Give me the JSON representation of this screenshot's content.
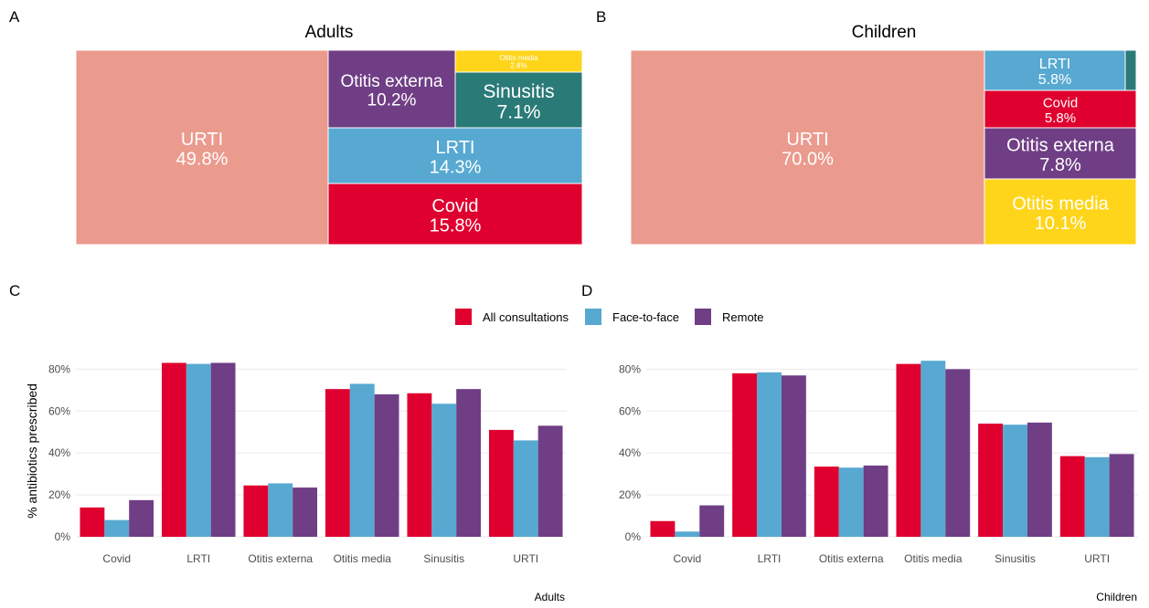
{
  "panels": [
    {
      "letter": "A",
      "title": "Adults"
    },
    {
      "letter": "B",
      "title": "Children"
    },
    {
      "letter": "C"
    },
    {
      "letter": "D"
    }
  ],
  "colors": {
    "URTI": "#EB9A8E",
    "Otitis externa": "#6F3E85",
    "Otitis media": "#FED51A",
    "Sinusitis": "#2A7A78",
    "LRTI": "#57A9D1",
    "Covid": "#E0002F",
    "All consultations": "#E0002F",
    "Face-to-face": "#57A9D1",
    "Remote": "#6F3E85"
  },
  "chart_data": [
    {
      "type": "treemap",
      "title": "Adults",
      "items": [
        {
          "name": "URTI",
          "value": 49.8,
          "label": "49.8%"
        },
        {
          "name": "Otitis externa",
          "value": 10.2,
          "label": "10.2%"
        },
        {
          "name": "Otitis media",
          "value": 2.8,
          "label": "2.8%"
        },
        {
          "name": "Sinusitis",
          "value": 7.1,
          "label": "7.1%"
        },
        {
          "name": "LRTI",
          "value": 14.3,
          "label": "14.3%"
        },
        {
          "name": "Covid",
          "value": 15.8,
          "label": "15.8%"
        }
      ]
    },
    {
      "type": "treemap",
      "title": "Children",
      "items": [
        {
          "name": "URTI",
          "value": 70.0,
          "label": "70.0%"
        },
        {
          "name": "LRTI",
          "value": 5.8,
          "label": "5.8%"
        },
        {
          "name": "Sinusitis",
          "value": 0.5,
          "label": ""
        },
        {
          "name": "Covid",
          "value": 5.8,
          "label": "5.8%"
        },
        {
          "name": "Otitis externa",
          "value": 7.8,
          "label": "7.8%"
        },
        {
          "name": "Otitis media",
          "value": 10.1,
          "label": "10.1%"
        }
      ]
    },
    {
      "type": "bar",
      "categories": [
        "Covid",
        "LRTI",
        "Otitis externa",
        "Otitis media",
        "Sinusitis",
        "URTI"
      ],
      "series": [
        {
          "name": "All consultations",
          "values": [
            14,
            83,
            24.5,
            70.5,
            68.5,
            51
          ]
        },
        {
          "name": "Face-to-face",
          "values": [
            8,
            82.5,
            25.5,
            73,
            63.5,
            46
          ]
        },
        {
          "name": "Remote",
          "values": [
            17.5,
            83,
            23.5,
            68,
            70.5,
            53
          ]
        }
      ],
      "ylabel": "% antibiotics prescribed",
      "yticks": [
        "0%",
        "20%",
        "40%",
        "60%",
        "80%"
      ],
      "ylim": [
        0,
        88
      ],
      "caption": "Adults",
      "grid": true
    },
    {
      "type": "bar",
      "categories": [
        "Covid",
        "LRTI",
        "Otitis externa",
        "Otitis media",
        "Sinusitis",
        "URTI"
      ],
      "series": [
        {
          "name": "All consultations",
          "values": [
            7.5,
            78,
            33.5,
            82.5,
            54,
            38.5
          ]
        },
        {
          "name": "Face-to-face",
          "values": [
            2.5,
            78.5,
            33,
            84,
            53.5,
            38
          ]
        },
        {
          "name": "Remote",
          "values": [
            15,
            77,
            34,
            80,
            54.5,
            39.5
          ]
        }
      ],
      "ylabel": "",
      "yticks": [
        "0%",
        "20%",
        "40%",
        "60%",
        "80%"
      ],
      "ylim": [
        0,
        88
      ],
      "caption": "Children",
      "grid": true
    }
  ],
  "legend": {
    "position": "top-center",
    "items": [
      "All consultations",
      "Face-to-face",
      "Remote"
    ]
  }
}
